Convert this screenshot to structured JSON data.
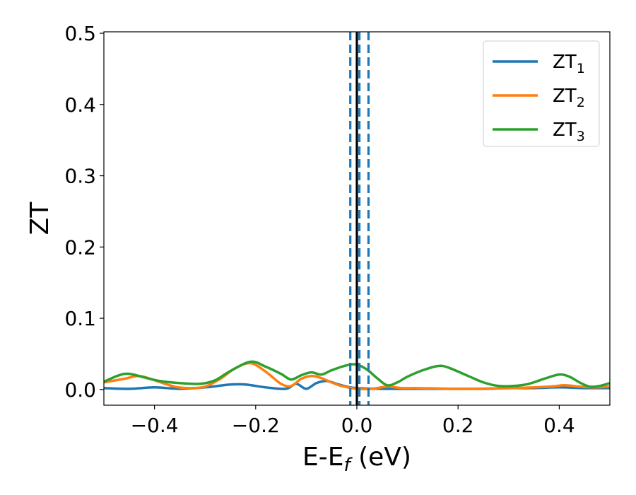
{
  "chart_data": {
    "type": "line",
    "title": "",
    "xlabel_main": "E-E",
    "xlabel_sub": "f",
    "xlabel_tail": " (eV)",
    "ylabel": "ZT",
    "xlim": [
      -0.5,
      0.5
    ],
    "ylim": [
      -0.022,
      0.502
    ],
    "x_ticks": [
      -0.4,
      -0.2,
      0.0,
      0.2,
      0.4
    ],
    "x_tick_labels": [
      "−0.4",
      "−0.2",
      "0.0",
      "0.2",
      "0.4"
    ],
    "y_ticks": [
      0.0,
      0.1,
      0.2,
      0.3,
      0.4,
      0.5
    ],
    "y_tick_labels": [
      "0.0",
      "0.1",
      "0.2",
      "0.3",
      "0.4",
      "0.5"
    ],
    "grid": false,
    "legend_position": "top-right",
    "reference_lines": [
      {
        "x": 0.0,
        "style": "solid",
        "color": "#000000"
      },
      {
        "x": -0.013,
        "style": "dashed",
        "color": "#1f77b4"
      },
      {
        "x": 0.005,
        "style": "dashed",
        "color": "#1f77b4"
      },
      {
        "x": 0.023,
        "style": "dashed",
        "color": "#1f77b4"
      }
    ],
    "series": [
      {
        "name": "ZT",
        "subscript": "1",
        "color": "#1f77b4",
        "points": [
          [
            -0.5,
            0.002
          ],
          [
            -0.45,
            0.001
          ],
          [
            -0.4,
            0.003
          ],
          [
            -0.35,
            0.001
          ],
          [
            -0.3,
            0.003
          ],
          [
            -0.25,
            0.007
          ],
          [
            -0.22,
            0.007
          ],
          [
            -0.18,
            0.003
          ],
          [
            -0.14,
            0.001
          ],
          [
            -0.12,
            0.008
          ],
          [
            -0.1,
            0.001
          ],
          [
            -0.08,
            0.009
          ],
          [
            -0.06,
            0.012
          ],
          [
            -0.04,
            0.008
          ],
          [
            -0.02,
            0.004
          ],
          [
            0.0,
            0.002
          ],
          [
            0.05,
            0.001
          ],
          [
            0.1,
            0.001
          ],
          [
            0.15,
            0.001
          ],
          [
            0.2,
            0.001
          ],
          [
            0.25,
            0.001
          ],
          [
            0.3,
            0.002
          ],
          [
            0.35,
            0.002
          ],
          [
            0.4,
            0.003
          ],
          [
            0.45,
            0.002
          ],
          [
            0.5,
            0.002
          ]
        ]
      },
      {
        "name": "ZT",
        "subscript": "2",
        "color": "#ff7f0e",
        "points": [
          [
            -0.5,
            0.01
          ],
          [
            -0.46,
            0.015
          ],
          [
            -0.43,
            0.019
          ],
          [
            -0.4,
            0.013
          ],
          [
            -0.36,
            0.004
          ],
          [
            -0.33,
            0.002
          ],
          [
            -0.3,
            0.004
          ],
          [
            -0.27,
            0.015
          ],
          [
            -0.24,
            0.03
          ],
          [
            -0.21,
            0.037
          ],
          [
            -0.18,
            0.025
          ],
          [
            -0.15,
            0.008
          ],
          [
            -0.13,
            0.005
          ],
          [
            -0.11,
            0.015
          ],
          [
            -0.09,
            0.019
          ],
          [
            -0.07,
            0.016
          ],
          [
            -0.05,
            0.01
          ],
          [
            -0.03,
            0.005
          ],
          [
            0.0,
            0.001
          ],
          [
            0.03,
            0.001
          ],
          [
            0.06,
            0.004
          ],
          [
            0.09,
            0.002
          ],
          [
            0.12,
            0.002
          ],
          [
            0.2,
            0.001
          ],
          [
            0.3,
            0.002
          ],
          [
            0.38,
            0.004
          ],
          [
            0.41,
            0.006
          ],
          [
            0.44,
            0.004
          ],
          [
            0.47,
            0.003
          ],
          [
            0.5,
            0.004
          ]
        ]
      },
      {
        "name": "ZT",
        "subscript": "3",
        "color": "#2ca02c",
        "points": [
          [
            -0.5,
            0.011
          ],
          [
            -0.47,
            0.02
          ],
          [
            -0.45,
            0.022
          ],
          [
            -0.42,
            0.017
          ],
          [
            -0.39,
            0.012
          ],
          [
            -0.35,
            0.009
          ],
          [
            -0.31,
            0.008
          ],
          [
            -0.28,
            0.013
          ],
          [
            -0.25,
            0.026
          ],
          [
            -0.21,
            0.039
          ],
          [
            -0.18,
            0.032
          ],
          [
            -0.15,
            0.022
          ],
          [
            -0.13,
            0.014
          ],
          [
            -0.11,
            0.02
          ],
          [
            -0.09,
            0.024
          ],
          [
            -0.07,
            0.021
          ],
          [
            -0.05,
            0.027
          ],
          [
            -0.02,
            0.034
          ],
          [
            0.0,
            0.035
          ],
          [
            0.02,
            0.028
          ],
          [
            0.04,
            0.016
          ],
          [
            0.06,
            0.006
          ],
          [
            0.08,
            0.01
          ],
          [
            0.1,
            0.018
          ],
          [
            0.13,
            0.027
          ],
          [
            0.16,
            0.033
          ],
          [
            0.18,
            0.031
          ],
          [
            0.22,
            0.019
          ],
          [
            0.25,
            0.01
          ],
          [
            0.28,
            0.005
          ],
          [
            0.31,
            0.005
          ],
          [
            0.34,
            0.008
          ],
          [
            0.37,
            0.015
          ],
          [
            0.4,
            0.021
          ],
          [
            0.42,
            0.018
          ],
          [
            0.44,
            0.01
          ],
          [
            0.46,
            0.004
          ],
          [
            0.48,
            0.005
          ],
          [
            0.5,
            0.009
          ]
        ]
      }
    ]
  }
}
